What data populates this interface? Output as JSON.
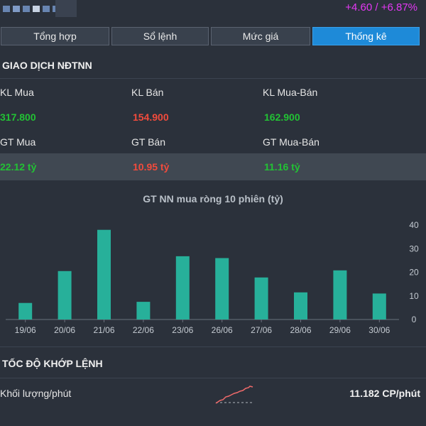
{
  "header": {
    "price_change": "+4.60 / +6.87%"
  },
  "tabs": [
    {
      "label": "Tổng hợp",
      "active": false
    },
    {
      "label": "Sổ lệnh",
      "active": false
    },
    {
      "label": "Mức giá",
      "active": false
    },
    {
      "label": "Thống kê",
      "active": true
    }
  ],
  "foreign": {
    "title": "GIAO DỊCH NĐTNN",
    "kl_mua_label": "KL Mua",
    "kl_mua": "317.800",
    "kl_ban_label": "KL Bán",
    "kl_ban": "154.900",
    "kl_net_label": "KL Mua-Bán",
    "kl_net": "162.900",
    "gt_mua_label": "GT Mua",
    "gt_mua": "22.12 tỷ",
    "gt_ban_label": "GT Bán",
    "gt_ban": "10.95 tỷ",
    "gt_net_label": "GT Mua-Bán",
    "gt_net": "11.16 tỷ"
  },
  "chart_data": {
    "type": "bar",
    "title": "GT NN mua ròng 10 phiên (tỷ)",
    "categories": [
      "19/06",
      "20/06",
      "21/06",
      "22/06",
      "23/06",
      "26/06",
      "27/06",
      "28/06",
      "29/06",
      "30/06"
    ],
    "values": [
      7,
      20.5,
      38,
      7.5,
      26.8,
      26,
      17.8,
      11.5,
      20.8,
      11
    ],
    "ylim": [
      0,
      40
    ],
    "yticks": [
      0,
      10,
      20,
      30,
      40
    ],
    "bar_color": "#27b09a",
    "grid": false
  },
  "speed": {
    "title": "TỐC ĐỘ KHỚP LỆNH",
    "label": "Khối lượng/phút",
    "value": "11.182 CP/phút"
  },
  "colors": {
    "up": "#22c234",
    "down": "#f24b3c",
    "accent": "#1e8ad8",
    "change": "#e438f4"
  }
}
